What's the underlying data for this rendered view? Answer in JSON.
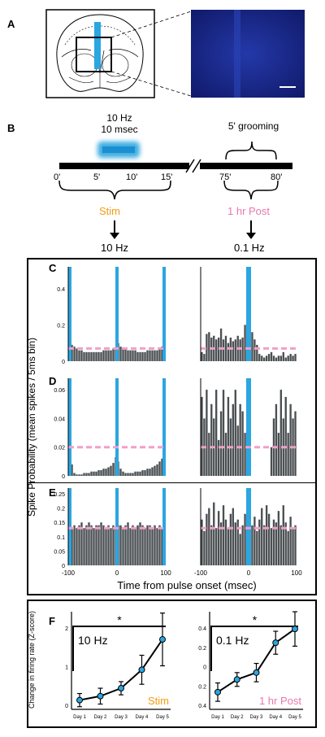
{
  "panels": {
    "a": {
      "letter": "A"
    },
    "b": {
      "letter": "B",
      "stim_freq": "10 Hz",
      "stim_width": "10 msec",
      "grooming": "5' grooming",
      "ticks": [
        "0'",
        "5'",
        "10'",
        "15'",
        "75'",
        "80'"
      ],
      "stim_label": "Stim",
      "post_label": "1 hr Post",
      "stim_rate": "10 Hz",
      "post_rate": "0.1 Hz"
    },
    "c": {
      "letter": "C"
    },
    "d": {
      "letter": "D"
    },
    "e": {
      "letter": "E"
    },
    "f": {
      "letter": "F"
    }
  },
  "ylabel_psth": "Spike Probability (mean spikes / 5ms bin)",
  "xlabel_psth": "Time from pulse onset (msec)",
  "ylabel_f": "Change in firing rate (Z-score)",
  "colors": {
    "stim_blue": "#2aa6e0",
    "dash_pink": "#f0a0c8",
    "stim_orange": "#f39c12",
    "post_pink": "#e878b0",
    "bar_gray": "#4a4f52",
    "cortex_blue": "#1a2a8c"
  },
  "chart_data": [
    {
      "panel": "C-left",
      "type": "bar",
      "yticks": [
        "0.4",
        "0.2",
        "0"
      ],
      "ylim": [
        0,
        0.52
      ],
      "baseline": 0.07,
      "values": [
        0.1,
        0.09,
        0.08,
        0.07,
        0.06,
        0.06,
        0.05,
        0.05,
        0.05,
        0.05,
        0.05,
        0.05,
        0.05,
        0.05,
        0.06,
        0.06,
        0.06,
        0.06,
        0.07,
        0.07,
        0.1,
        0.08,
        0.07,
        0.07,
        0.06,
        0.06,
        0.06,
        0.06,
        0.05,
        0.05,
        0.05,
        0.05,
        0.06,
        0.06,
        0.06,
        0.06,
        0.06,
        0.07,
        0.08,
        0.09
      ]
    },
    {
      "panel": "C-right",
      "type": "bar",
      "ylim": [
        0,
        0.52
      ],
      "baseline": 0.07,
      "values": [
        0.05,
        0.04,
        0.15,
        0.16,
        0.13,
        0.14,
        0.12,
        0.13,
        0.18,
        0.12,
        0.14,
        0.1,
        0.13,
        0.11,
        0.12,
        0.14,
        0.12,
        0.13,
        0.2,
        0.3,
        0.45,
        0.16,
        0.12,
        0.09,
        0.04,
        0.03,
        0.02,
        0.03,
        0.04,
        0.05,
        0.03,
        0.02,
        0.03,
        0.03,
        0.05,
        0.02,
        0.03,
        0.04,
        0.03,
        0.04
      ]
    },
    {
      "panel": "D-left",
      "type": "bar",
      "yticks": [
        "0.06",
        "0.04",
        "0.02",
        "0"
      ],
      "ylim": [
        0,
        0.068
      ],
      "baseline": 0.02,
      "values": [
        0.013,
        0.008,
        0.002,
        0.001,
        0.001,
        0.001,
        0.002,
        0.002,
        0.002,
        0.003,
        0.003,
        0.003,
        0.004,
        0.004,
        0.005,
        0.005,
        0.006,
        0.007,
        0.009,
        0.013,
        0.01,
        0.005,
        0.003,
        0.002,
        0.002,
        0.002,
        0.002,
        0.003,
        0.003,
        0.003,
        0.004,
        0.004,
        0.005,
        0.005,
        0.006,
        0.007,
        0.008,
        0.01,
        0.012,
        0.014
      ]
    },
    {
      "panel": "D-right",
      "type": "bar",
      "ylim": [
        0,
        0.068
      ],
      "baseline": 0.02,
      "values": [
        0.055,
        0.04,
        0.06,
        0.03,
        0.05,
        0.04,
        0.06,
        0.025,
        0.045,
        0.06,
        0.03,
        0.055,
        0.04,
        0.05,
        0.06,
        0.035,
        0.05,
        0.045,
        0.03,
        0.06,
        0.055,
        0,
        0,
        0,
        0,
        0,
        0,
        0,
        0,
        0.02,
        0.04,
        0.05,
        0.03,
        0.06,
        0.04,
        0.055,
        0.03,
        0.05,
        0.04,
        0.045
      ]
    },
    {
      "panel": "E-left",
      "type": "bar",
      "yticks": [
        "0.25",
        "0.2",
        "0.15",
        "0.1",
        "0.05",
        "0"
      ],
      "ylim": [
        0,
        0.27
      ],
      "baseline": 0.13,
      "values": [
        0.14,
        0.13,
        0.14,
        0.13,
        0.14,
        0.15,
        0.13,
        0.14,
        0.15,
        0.14,
        0.13,
        0.14,
        0.14,
        0.15,
        0.14,
        0.13,
        0.14,
        0.13,
        0.14,
        0.13,
        0.14,
        0.14,
        0.13,
        0.14,
        0.15,
        0.13,
        0.14,
        0.13,
        0.14,
        0.15,
        0.14,
        0.13,
        0.14,
        0.14,
        0.13,
        0.14,
        0.13,
        0.14,
        0.13,
        0.14
      ]
    },
    {
      "panel": "E-right",
      "type": "bar",
      "ylim": [
        0,
        0.27
      ],
      "baseline": 0.13,
      "values": [
        0.16,
        0.12,
        0.18,
        0.2,
        0.14,
        0.22,
        0.13,
        0.19,
        0.15,
        0.21,
        0.16,
        0.13,
        0.18,
        0.2,
        0.15,
        0.16,
        0.11,
        0.14,
        0.18,
        0.07,
        0.22,
        0.14,
        0.17,
        0.12,
        0.16,
        0.2,
        0.14,
        0.21,
        0.18,
        0.13,
        0.16,
        0.15,
        0.19,
        0.14,
        0.21,
        0.15,
        0.12,
        0.17,
        0.13,
        0.14
      ]
    },
    {
      "panel": "F-left",
      "type": "line",
      "label": "10 Hz",
      "condition": "Stim",
      "x": [
        "Day 1",
        "Day 2",
        "Day 3",
        "Day 4",
        "Day 5"
      ],
      "y": [
        -0.15,
        0.0,
        0.3,
        1.0,
        2.15
      ],
      "err": [
        0.25,
        0.3,
        0.25,
        0.55,
        1.0
      ],
      "yticks": [
        "2",
        "1",
        "0"
      ],
      "ylim": [
        -0.5,
        3.2
      ],
      "sig": "*"
    },
    {
      "panel": "F-right",
      "type": "line",
      "label": "0.1 Hz",
      "condition": "1 hr Post",
      "x": [
        "Day 1",
        "Day 2",
        "Day 3",
        "Day 4",
        "Day 5"
      ],
      "y": [
        -0.25,
        -0.14,
        -0.08,
        0.18,
        0.3
      ],
      "err": [
        0.08,
        0.06,
        0.08,
        0.1,
        0.15
      ],
      "yticks": [
        "0.4",
        "0.2",
        "0",
        "0.2",
        "0.4"
      ],
      "ylim": [
        -0.4,
        0.45
      ],
      "sig": "*"
    }
  ]
}
